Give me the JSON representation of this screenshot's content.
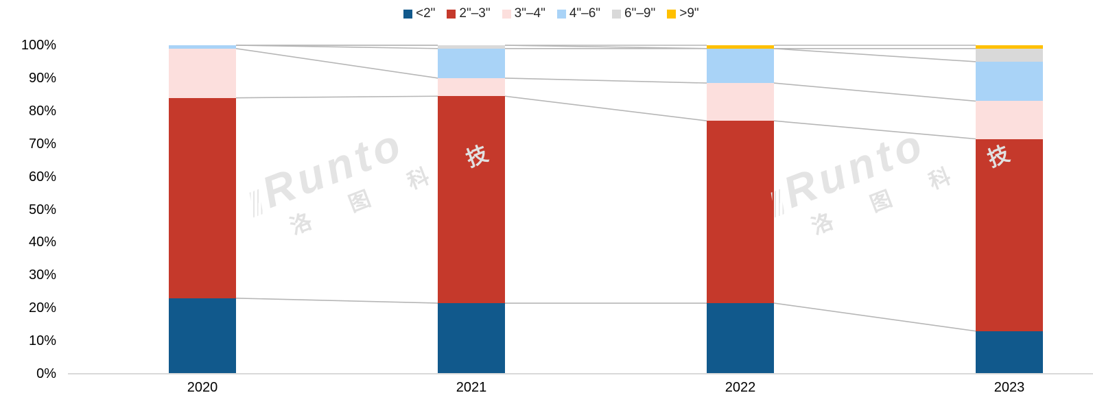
{
  "chart_data": {
    "type": "bar",
    "variant": "stacked-100-percent",
    "title": "",
    "xlabel": "",
    "ylabel": "",
    "unit": "%",
    "ylim": [
      0,
      100
    ],
    "grid": "none",
    "legend_position": "top",
    "connector_lines": true,
    "categories": [
      "2020",
      "2021",
      "2022",
      "2023"
    ],
    "y_ticks": [
      "0%",
      "10%",
      "20%",
      "30%",
      "40%",
      "50%",
      "60%",
      "70%",
      "80%",
      "90%",
      "100%"
    ],
    "series": [
      {
        "name": "<2\"",
        "color": "#11598c",
        "values": [
          23,
          21.5,
          21.5,
          13
        ]
      },
      {
        "name": "2\"–3\"",
        "color": "#c5392b",
        "values": [
          61,
          63,
          55.5,
          58.5
        ]
      },
      {
        "name": "3\"–4\"",
        "color": "#fcdfdd",
        "values": [
          15,
          5.5,
          11.5,
          11.5
        ]
      },
      {
        "name": "4\"–6\"",
        "color": "#a9d3f7",
        "values": [
          1,
          9,
          10.5,
          12
        ]
      },
      {
        "name": "6\"–9\"",
        "color": "#d9d9d9",
        "values": [
          0,
          1,
          0,
          4
        ]
      },
      {
        "name": ">9\"",
        "color": "#ffc000",
        "values": [
          0,
          0,
          1,
          1
        ]
      }
    ]
  },
  "watermark": {
    "latin": "Runto",
    "cn": "洛 图 科 技"
  },
  "colors": {
    "axis_line": "#d9d9d9",
    "connector_line": "#b6b6b6",
    "tick_text": "#000000",
    "legend_text": "#262626",
    "watermark": "#e4e4e4"
  }
}
